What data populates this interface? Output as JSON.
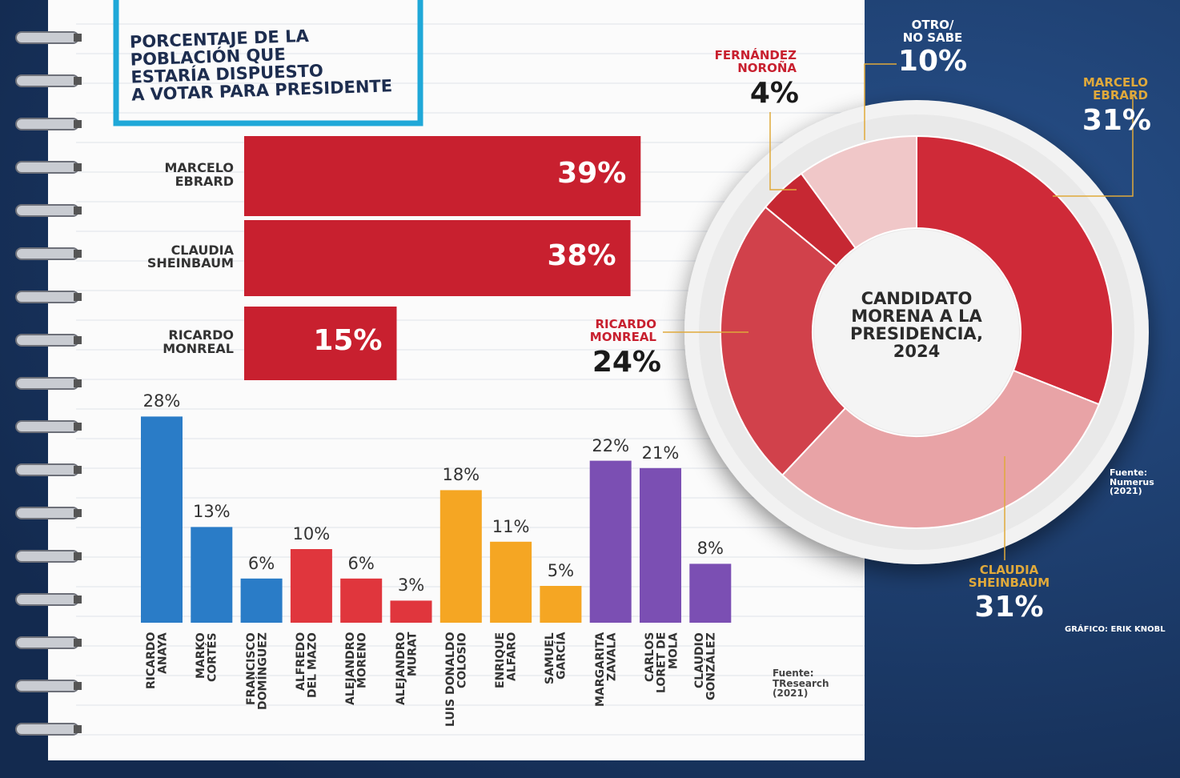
{
  "chart_data": [
    {
      "type": "bar",
      "orientation": "horizontal",
      "title": "PORCENTAJE DE LA\nPOBLACIÓN QUE\nESTARÍA DISPUESTO\nA VOTAR PARA PRESIDENTE",
      "categories": [
        "MARCELO\nEBRARD",
        "CLAUDIA\nSHEINBAUM",
        "RICARDO\nMONREAL"
      ],
      "values": [
        39,
        38,
        15
      ],
      "value_labels": [
        "39%",
        "38%",
        "15%"
      ],
      "color": "#c8202f"
    },
    {
      "type": "bar",
      "orientation": "vertical",
      "categories": [
        "RICARDO\nANAYA",
        "MARKO\nCORTÉS",
        "FRANCISCO\nDOMÍNGUEZ",
        "ALFREDO\nDEL MAZO",
        "ALEJANDRO\nMORENO",
        "ALEJANDRO\nMURAT",
        "LUIS DONALDO\nCOLOSIO",
        "ENRIQUE\nALFARO",
        "SAMUEL\nGARCÍA",
        "MARGARITA\nZAVALA",
        "CARLOS\nLORET DE MOLA",
        "CLAUDIO\nGONZÁLEZ"
      ],
      "values": [
        28,
        13,
        6,
        10,
        6,
        3,
        18,
        11,
        5,
        22,
        21,
        8
      ],
      "value_labels": [
        "28%",
        "13%",
        "6%",
        "10%",
        "6%",
        "3%",
        "18%",
        "11%",
        "5%",
        "22%",
        "21%",
        "8%"
      ],
      "colors": [
        "#2a7cc7",
        "#2a7cc7",
        "#2a7cc7",
        "#e0363d",
        "#e0363d",
        "#e0363d",
        "#f5a623",
        "#f5a623",
        "#f5a623",
        "#7b4fb3",
        "#7b4fb3",
        "#7b4fb3"
      ],
      "source": "Fuente:\nTResearch\n(2021)"
    },
    {
      "type": "donut",
      "title": "CANDIDATO\nMORENA A LA\nPRESIDENCIA,\n2024",
      "categories": [
        "MARCELO\nEBRARD",
        "CLAUDIA\nSHEINBAUM",
        "RICARDO\nMONREAL",
        "FERNÁNDEZ\nNOROÑA",
        "OTRO/\nNO SABE"
      ],
      "values": [
        31,
        31,
        24,
        4,
        10
      ],
      "value_labels": [
        "31%",
        "31%",
        "24%",
        "4%",
        "10%"
      ],
      "colors": [
        "#cf2a38",
        "#e8a3a6",
        "#d1414b",
        "#c62833",
        "#f0c7c8"
      ],
      "source": "Fuente:\nNumerus\n(2021)",
      "credit": "GRÁFICO: ERIK KNOBL"
    }
  ]
}
